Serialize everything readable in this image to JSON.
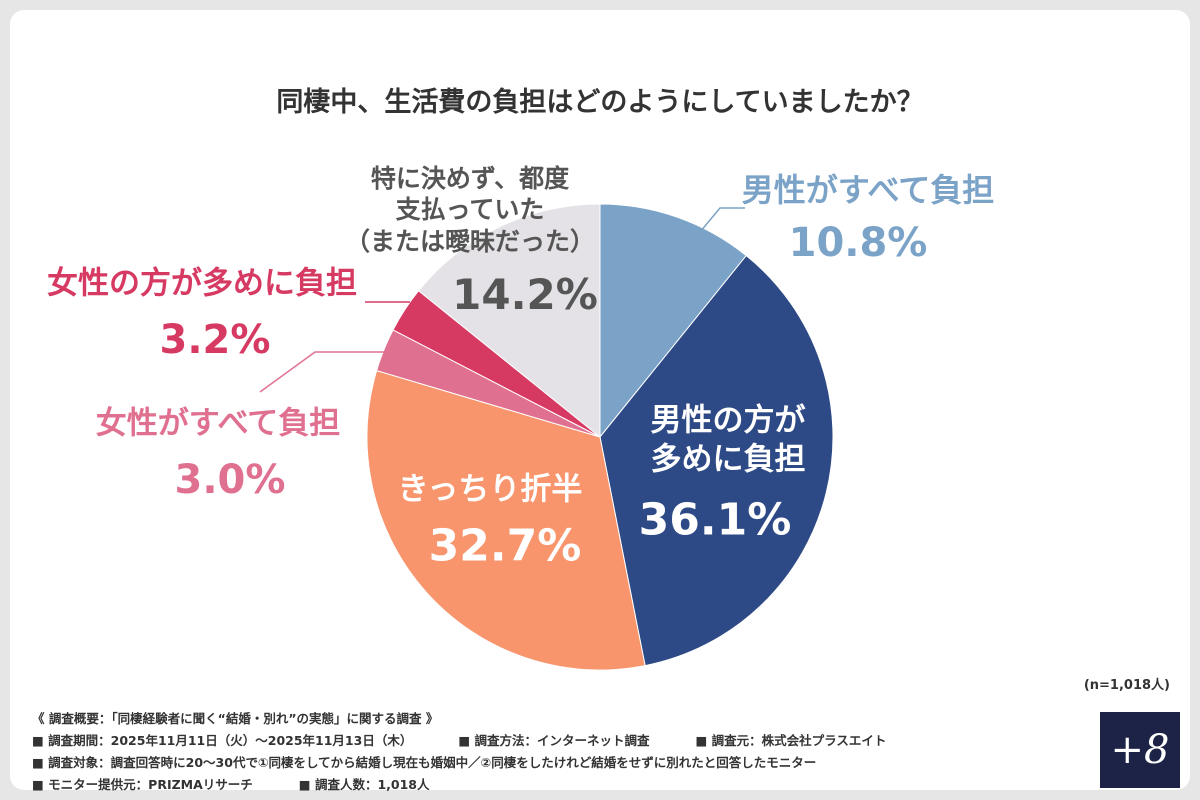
{
  "chart_data": {
    "type": "pie",
    "title": "同棲中、生活費の負担はどのようにしていましたか？",
    "categories": [
      "男性がすべて負担",
      "男性の方が\n多めに負担",
      "きっちり折半",
      "女性がすべて負担",
      "女性の方が多めに負担",
      "特に決めず、都度\n支払っていた\n（または曖昧だった）"
    ],
    "values": [
      10.8,
      36.1,
      32.7,
      3.0,
      3.2,
      14.2
    ],
    "value_labels": [
      "10.8%",
      "36.1%",
      "32.7%",
      "3.0%",
      "3.2%",
      "14.2%"
    ],
    "colors": [
      "#7ba3c8",
      "#2e4a86",
      "#f8956c",
      "#e07090",
      "#d63a62",
      "#e4e2e6"
    ],
    "sample_size": "(n=1,018人)",
    "notes": [
      [
        "《 調査概要：「同棲経験者に聞く“結婚・別れ”の実態」に関する調査 》"
      ],
      [
        "■ 調査期間：2025年11月11日（火）〜2025年11月13日（木）",
        "■ 調査方法：インターネット調査",
        "■ 調査元：株式会社プラスエイト"
      ],
      [
        "■ 調査対象：調査回答時に20〜30代で①同棲をしてから結婚し現在も婚姻中／②同棲をしたけれど結婚をせずに別れたと回答したモニター"
      ],
      [
        "■ モニター提供元：PRIZMAリサーチ",
        "■ 調査人数：1,018人"
      ]
    ],
    "logo": "+8"
  }
}
